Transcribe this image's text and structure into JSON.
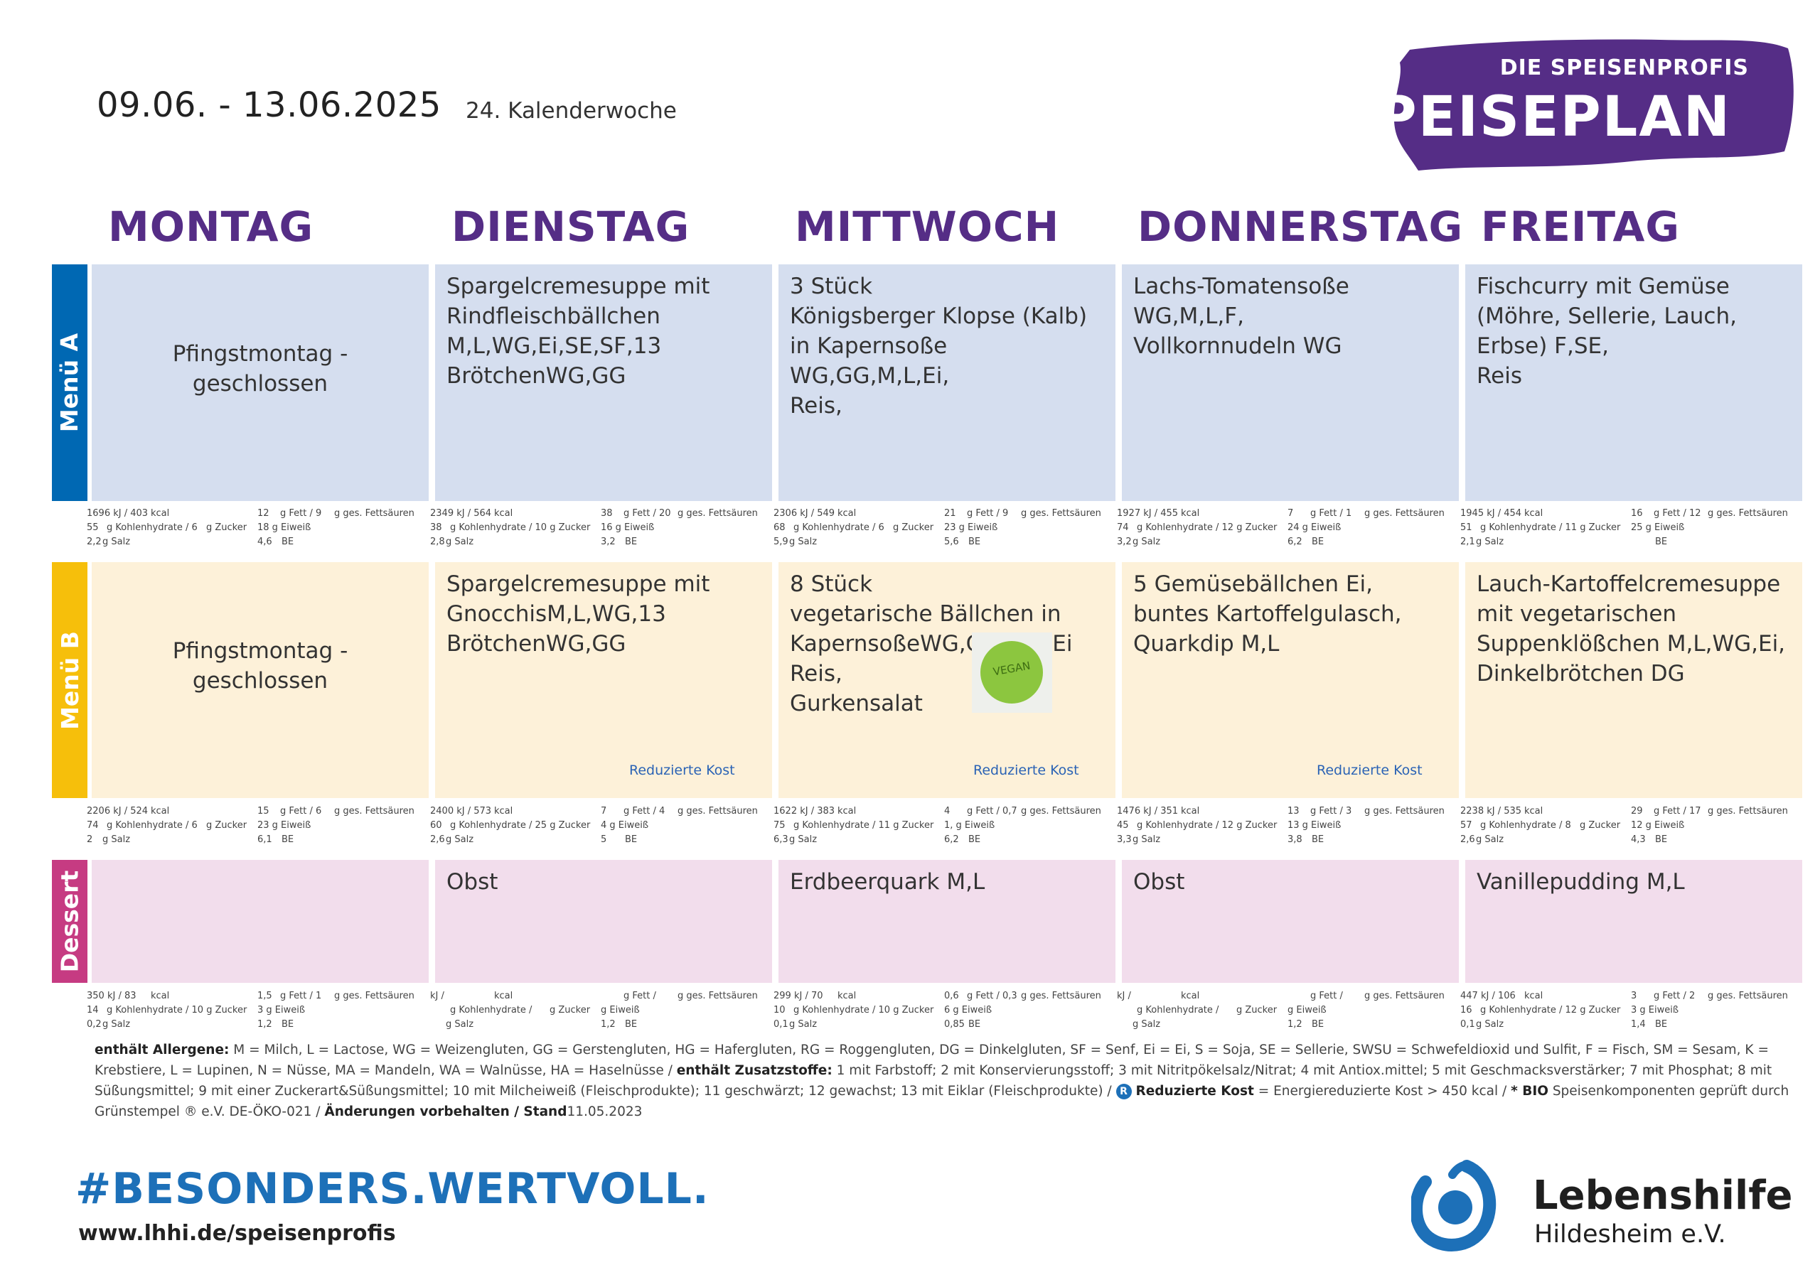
{
  "header": {
    "date_range": "09.06. - 13.06.2025",
    "calendar_week": "24. Kalenderwoche"
  },
  "brand": {
    "subtitle": "DIE SPEISENPROFIS",
    "title": "SPEISEPLAN"
  },
  "days": [
    "MONTAG",
    "DIENSTAG",
    "MITTWOCH",
    "DONNERSTAG",
    "FREITAG"
  ],
  "row_labels": {
    "menu_a": "Menü A",
    "menu_b": "Menü B",
    "dessert": "Dessert"
  },
  "colors": {
    "menu_a_label": "#0068b3",
    "menu_b_label": "#f6bf0b",
    "dessert_label": "#c63b82",
    "brand_purple": "#552d86",
    "hashtag_blue": "#1d70b8"
  },
  "menu_a": [
    {
      "text": "Pfingstmontag -\ngeschlossen",
      "nutrition": {
        "a": "1696 kJ / 403",
        "b": "kcal",
        "c": "12",
        "d": "g Fett / 9",
        "e": "g ges. Fettsäuren",
        "f": "55",
        "g": "g Kohlenhydrate / 6",
        "h": "g Zucker",
        "i": "18 g Eiweiß",
        "j": "2,2",
        "k": "g Salz",
        "l": "4,6",
        "m": "BE"
      }
    },
    {
      "text": "Spargelcremesuppe mit\nRindfleischbällchen\nM,L,WG,Ei,SE,SF,13\nBrötchenWG,GG",
      "nutrition": {
        "a": "2349 kJ / 564",
        "b": "kcal",
        "c": "38",
        "d": "g Fett / 20",
        "e": "g ges. Fettsäuren",
        "f": "38",
        "g": "g Kohlenhydrate / 10 g Zucker",
        "h": "",
        "i": "16 g Eiweiß",
        "j": "2,8",
        "k": "g Salz",
        "l": "3,2",
        "m": "BE"
      }
    },
    {
      "text": "3 Stück\nKönigsberger Klopse (Kalb)\nin Kapernsoße\nWG,GG,M,L,Ei,\nReis,",
      "nutrition": {
        "a": "2306 kJ / 549",
        "b": "kcal",
        "c": "21",
        "d": "g Fett / 9",
        "e": "g ges. Fettsäuren",
        "f": "68",
        "g": "g Kohlenhydrate / 6",
        "h": "g Zucker",
        "i": "23 g Eiweiß",
        "j": "5,9",
        "k": "g Salz",
        "l": "5,6",
        "m": "BE"
      }
    },
    {
      "text": "Lachs-Tomatensoße\nWG,M,L,F,\nVollkornnudeln WG",
      "nutrition": {
        "a": "1927 kJ / 455",
        "b": "kcal",
        "c": "7",
        "d": "g Fett / 1",
        "e": "g ges. Fettsäuren",
        "f": "74",
        "g": "g Kohlenhydrate / 12 g Zucker",
        "h": "",
        "i": "24 g Eiweiß",
        "j": "3,2",
        "k": "g Salz",
        "l": "6,2",
        "m": "BE"
      }
    },
    {
      "text": " Fischcurry mit Gemüse\n(Möhre, Sellerie, Lauch,\nErbse) F,SE,\nReis",
      "nutrition": {
        "a": "1945 kJ / 454",
        "b": "kcal",
        "c": "16",
        "d": "g Fett / 12",
        "e": "g ges. Fettsäuren",
        "f": "51",
        "g": "g Kohlenhydrate / 11 g Zucker",
        "h": "",
        "i": "25 g Eiweiß",
        "j": "2,1",
        "k": "g Salz",
        "l": "",
        "m": "BE"
      }
    }
  ],
  "menu_b": [
    {
      "text": "Pfingstmontag -\ngeschlossen",
      "reduced": "",
      "nutrition": {
        "a": "2206 kJ / 524",
        "b": "kcal",
        "c": "15",
        "d": "g Fett / 6",
        "e": "g ges. Fettsäuren",
        "f": "74",
        "g": "g Kohlenhydrate / 6",
        "h": "g Zucker",
        "i": "23 g Eiweiß",
        "j": "2",
        "k": "g Salz",
        "l": "6,1",
        "m": "BE"
      }
    },
    {
      "text": "Spargelcremesuppe mit\nGnocchisM,L,WG,13\nBrötchenWG,GG",
      "reduced": "Reduzierte Kost",
      "nutrition": {
        "a": "2400 kJ / 573",
        "b": "kcal",
        "c": "7",
        "d": "g Fett / 4",
        "e": "g ges. Fettsäuren",
        "f": "60",
        "g": "g Kohlenhydrate / 25 g Zucker",
        "h": "",
        "i": "4  g Eiweiß",
        "j": "2,6",
        "k": "g Salz",
        "l": "5",
        "m": "BE"
      }
    },
    {
      "text": "8 Stück\nvegetarische Bällchen in\nKapernsoßeWG,GG,M,L,Ei\nReis,\nGurkensalat",
      "reduced": "Reduzierte Kost",
      "nutrition": {
        "a": "1622 kJ / 383",
        "b": "kcal",
        "c": "4",
        "d": "g Fett / 0,7",
        "e": "g ges. Fettsäuren",
        "f": "75",
        "g": "g Kohlenhydrate / 11 g Zucker",
        "h": "",
        "i": "1,  g Eiweiß",
        "j": "6,3",
        "k": "g Salz",
        "l": "6,2",
        "m": "BE"
      }
    },
    {
      "text": "5 Gemüsebällchen Ei,\nbuntes Kartoffelgulasch,\nQuarkdip M,L",
      "reduced": "Reduzierte Kost",
      "nutrition": {
        "a": "1476 kJ / 351",
        "b": "kcal",
        "c": "13",
        "d": "g Fett / 3",
        "e": "g ges. Fettsäuren",
        "f": "45",
        "g": "g Kohlenhydrate / 12 g Zucker",
        "h": "",
        "i": "13 g Eiweiß",
        "j": "3,3",
        "k": "g Salz",
        "l": "3,8",
        "m": "BE"
      }
    },
    {
      "text": "Lauch-Kartoffelcremesuppe\nmit vegetarischen\nSuppenklößchen M,L,WG,Ei,\nDinkelbrötchen DG",
      "reduced": "",
      "nutrition": {
        "a": "2238 kJ / 535",
        "b": "kcal",
        "c": "29",
        "d": "g Fett / 17",
        "e": "g ges. Fettsäuren",
        "f": "57",
        "g": "g Kohlenhydrate / 8",
        "h": "g Zucker",
        "i": "12 g Eiweiß",
        "j": "2,6",
        "k": "g Salz",
        "l": "4,3",
        "m": "BE"
      }
    }
  ],
  "vegan_badge": "VEGAN",
  "dessert": [
    {
      "text": "",
      "nutrition": {
        "a": "350  kJ / 83",
        "b": "kcal",
        "c": "1,5",
        "d": "g Fett / 1",
        "e": "g ges. Fettsäuren",
        "f": "14",
        "g": "g Kohlenhydrate / 10 g Zucker",
        "h": "",
        "i": "3  g Eiweiß",
        "j": "0,2",
        "k": "g Salz",
        "l": "1,2",
        "m": "BE"
      }
    },
    {
      "text": "Obst",
      "nutrition": {
        "a": "kJ /",
        "b": "kcal",
        "c": "",
        "d": "g Fett /",
        "e": "g ges. Fettsäuren",
        "f": "",
        "g": "g Kohlenhydrate /",
        "h": "g Zucker",
        "i": "g Eiweiß",
        "j": "",
        "k": "g Salz",
        "l": "1,2",
        "m": "BE"
      }
    },
    {
      "text": "Erdbeerquark M,L",
      "nutrition": {
        "a": "299  kJ / 70",
        "b": "kcal",
        "c": "0,6",
        "d": "g Fett / 0,3",
        "e": "g ges. Fettsäuren",
        "f": "10",
        "g": "g Kohlenhydrate / 10 g Zucker",
        "h": "",
        "i": "6  g Eiweiß",
        "j": "0,1",
        "k": "g Salz",
        "l": "0,85",
        "m": "BE"
      }
    },
    {
      "text": "Obst",
      "nutrition": {
        "a": "kJ /",
        "b": "kcal",
        "c": "",
        "d": "g Fett /",
        "e": "g ges. Fettsäuren",
        "f": "",
        "g": "g Kohlenhydrate /",
        "h": "g Zucker",
        "i": "g Eiweiß",
        "j": "",
        "k": "g Salz",
        "l": "1,2",
        "m": "BE"
      }
    },
    {
      "text": "Vanillepudding M,L",
      "nutrition": {
        "a": "447  kJ / 106",
        "b": "kcal",
        "c": "3",
        "d": "g Fett / 2",
        "e": "g ges. Fettsäuren",
        "f": "16",
        "g": "g Kohlenhydrate / 12 g Zucker",
        "h": "",
        "i": "3  g Eiweiß",
        "j": "0,1",
        "k": "g Salz",
        "l": "1,4",
        "m": "BE"
      }
    }
  ],
  "legend": {
    "allergens_label": "enthält Allergene:",
    "allergens_text": " M = Milch, L = Lactose, WG = Weizengluten, GG = Gerstengluten, HG = Hafergluten, RG = Roggengluten, DG = Dinkelgluten, SF = Senf, Ei = Ei, S = Soja, SE = Sellerie, SWSU = Schwefeldioxid und Sulfit, F = Fisch, SM = Sesam, K = Krebstiere, L = Lupinen, N = Nüsse, MA = Mandeln, WA = Walnüsse, HA =  Haselnüsse / ",
    "additives_label": "enthält Zusatzstoffe:",
    "additives_text": " 1 mit Farbstoff; 2 mit Konservierungsstoff; 3 mit Nitritpökelsalz/Nitrat; 4 mit Antiox.mittel; 5 mit Geschmacksverstärker; 7 mit Phosphat; 8 mit Süßungsmittel; 9 mit einer Zuckerart&Süßungsmittel; 10 mit Milcheiweiß (Fleischprodukte); 11 geschwärzt; 12 gewachst; 13 mit Eiklar (Fleischprodukte) / ",
    "r_icon": "R",
    "reduced_label": "Reduzierte Kost",
    "reduced_text": " = Energiereduzierte Kost > 450 kcal / ",
    "bio_label": "* BIO",
    "bio_text": " Speisenkomponenten geprüft durch Grünstempel ® e.V. DE-ÖKO-021 / ",
    "changes_label": "Änderungen vorbehalten / Stand",
    "changes_date": "11.05.2023"
  },
  "footer": {
    "hashtag": "#BESONDERS.WERTVOLL.",
    "url": "www.lhhi.de/speisenprofis",
    "org_name": "Lebenshilfe",
    "org_city": "Hildesheim e.V."
  }
}
